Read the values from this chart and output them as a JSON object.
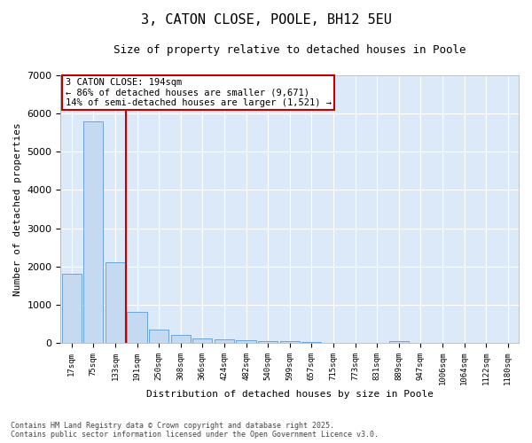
{
  "title": "3, CATON CLOSE, POOLE, BH12 5EU",
  "subtitle": "Size of property relative to detached houses in Poole",
  "xlabel": "Distribution of detached houses by size in Poole",
  "ylabel": "Number of detached properties",
  "bar_color": "#c5d9f0",
  "bar_edge_color": "#5b9bd5",
  "background_color": "#dce9f8",
  "fig_background": "#ffffff",
  "grid_color": "#ffffff",
  "categories": [
    "17sqm",
    "75sqm",
    "133sqm",
    "191sqm",
    "250sqm",
    "308sqm",
    "366sqm",
    "424sqm",
    "482sqm",
    "540sqm",
    "599sqm",
    "657sqm",
    "715sqm",
    "773sqm",
    "831sqm",
    "889sqm",
    "947sqm",
    "1006sqm",
    "1064sqm",
    "1122sqm",
    "1180sqm"
  ],
  "bar_heights": [
    1800,
    5800,
    2100,
    820,
    360,
    220,
    110,
    90,
    65,
    55,
    45,
    20,
    12,
    10,
    8,
    55,
    5,
    4,
    3,
    2,
    1
  ],
  "ylim": [
    0,
    7000
  ],
  "yticks": [
    0,
    1000,
    2000,
    3000,
    4000,
    5000,
    6000,
    7000
  ],
  "vline_x": 2.5,
  "vline_color": "#c00000",
  "annotation_line1": "3 CATON CLOSE: 194sqm",
  "annotation_line2": "← 86% of detached houses are smaller (9,671)",
  "annotation_line3": "14% of semi-detached houses are larger (1,521) →",
  "footer1": "Contains HM Land Registry data © Crown copyright and database right 2025.",
  "footer2": "Contains public sector information licensed under the Open Government Licence v3.0."
}
